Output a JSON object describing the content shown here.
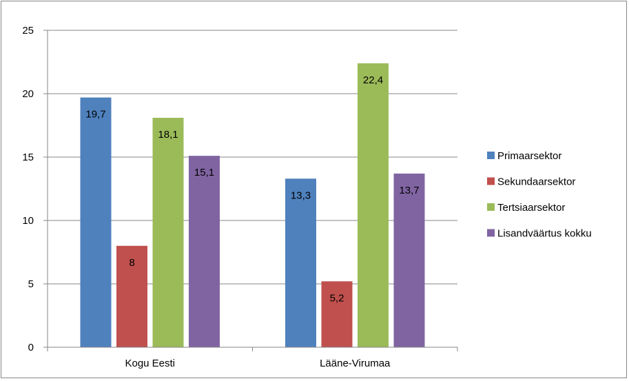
{
  "chart_data": {
    "type": "bar",
    "title": "",
    "xlabel": "",
    "ylabel": "",
    "categories": [
      "Kogu Eesti",
      "Lääne-Virumaa"
    ],
    "series": [
      {
        "name": "Primaarsektor",
        "values": [
          19.7,
          13.3
        ],
        "labels": [
          "19,7",
          "13,3"
        ],
        "color": "#4F81BD"
      },
      {
        "name": "Sekundaarsektor",
        "values": [
          8,
          5.2
        ],
        "labels": [
          "8",
          "5,2"
        ],
        "color": "#C0504D"
      },
      {
        "name": "Tertsiaarsektor",
        "values": [
          18.1,
          22.4
        ],
        "labels": [
          "18,1",
          "22,4"
        ],
        "color": "#9BBB59"
      },
      {
        "name": "Lisandväärtus kokku",
        "values": [
          15.1,
          13.7
        ],
        "labels": [
          "15,1",
          "13,7"
        ],
        "color": "#8064A2"
      }
    ],
    "ylim": [
      0,
      25
    ],
    "yticks": [
      0,
      5,
      10,
      15,
      20,
      25
    ],
    "grid": true,
    "legend": "right"
  }
}
